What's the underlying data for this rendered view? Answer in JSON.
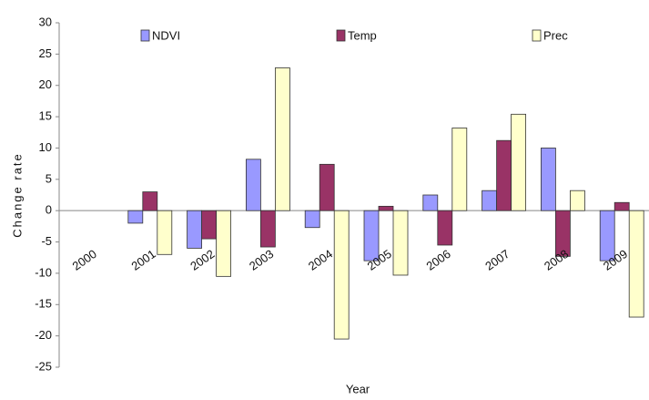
{
  "chart_data": {
    "type": "bar",
    "x_label": "Year",
    "y_label": "Change rate",
    "categories": [
      "2000",
      "2001",
      "2002",
      "2003",
      "2004",
      "2005",
      "2006",
      "2007",
      "2008",
      "2009"
    ],
    "series": [
      {
        "name": "NDVI",
        "color": "#9999ff",
        "values": [
          0,
          -2,
          -6,
          8.2,
          -2.7,
          -8,
          2.5,
          3.2,
          10,
          -8
        ]
      },
      {
        "name": "Temp",
        "color": "#993366",
        "values": [
          0,
          3,
          -4.5,
          -5.8,
          7.4,
          0.7,
          -5.5,
          11.2,
          -7.3,
          1.3
        ]
      },
      {
        "name": "Prec",
        "color": "#ffffcc",
        "values": [
          0,
          -7,
          -10.5,
          22.8,
          -20.5,
          -10.3,
          13.2,
          15.4,
          3.2,
          -17
        ]
      }
    ],
    "ylim": [
      -25,
      30
    ],
    "yticks": [
      -25,
      -20,
      -15,
      -10,
      -5,
      0,
      5,
      10,
      15,
      20,
      25,
      30
    ],
    "grid": false,
    "legend": "top"
  }
}
